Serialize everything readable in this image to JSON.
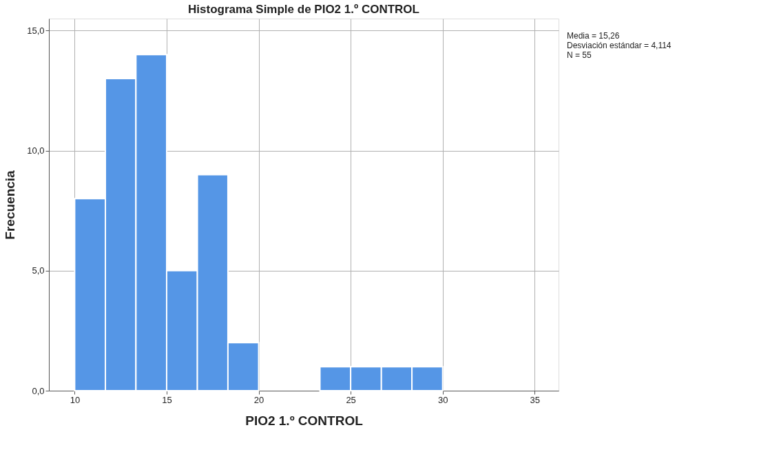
{
  "chart_data": {
    "type": "histogram",
    "title": "Histograma Simple de PIO2 1.º CONTROL",
    "xlabel": "PIO2 1.º CONTROL",
    "ylabel": "Frecuencia",
    "bins": [
      10,
      11.67,
      13.33,
      15,
      16.67,
      18.33,
      20,
      21.67,
      23.33,
      25,
      26.67,
      28.33,
      30
    ],
    "values": [
      8,
      13,
      14,
      5,
      9,
      2,
      0,
      0,
      1,
      1,
      1,
      1
    ],
    "color": "#5596e6",
    "xlim": [
      8.6,
      36.3
    ],
    "xticks": [
      10,
      15,
      20,
      25,
      30,
      35
    ],
    "ylim": [
      0,
      15.5
    ],
    "yticks": [
      {
        "value": 0,
        "label": "0,0"
      },
      {
        "value": 5,
        "label": "5,0"
      },
      {
        "value": 10,
        "label": "10,0"
      },
      {
        "value": 15,
        "label": "15,0"
      }
    ],
    "grid": true,
    "annotations": [
      "Media = 15,26",
      "Desviación estándar = 4,114",
      "N = 55"
    ]
  }
}
